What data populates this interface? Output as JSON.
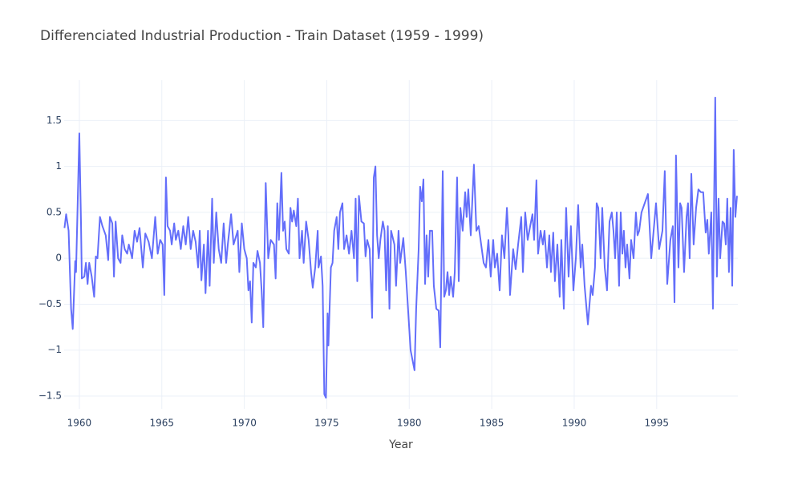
{
  "chart_data": {
    "type": "line",
    "title": "Differenciated Industrial Production - Train Dataset (1959 - 1999)",
    "xlabel": "Year",
    "color": "#636efa",
    "grid": true,
    "xlim": [
      1959.08,
      1999.92
    ],
    "ylim": [
      -1.64,
      1.94
    ],
    "xticks": [
      1960,
      1965,
      1970,
      1975,
      1980,
      1985,
      1990,
      1995
    ],
    "yticks": [
      {
        "value": -1.5,
        "label": "−1.5"
      },
      {
        "value": -1,
        "label": "−1"
      },
      {
        "value": -0.5,
        "label": "−0.5"
      },
      0,
      0.5,
      1,
      1.5
    ],
    "x": [
      1959.1,
      1959.2,
      1959.35,
      1959.5,
      1959.6,
      1959.75,
      1959.8,
      1960.0,
      1960.1,
      1960.15,
      1960.3,
      1960.4,
      1960.5,
      1960.6,
      1960.75,
      1960.9,
      1961.0,
      1961.1,
      1961.25,
      1961.4,
      1961.6,
      1961.75,
      1961.85,
      1962.0,
      1962.1,
      1962.2,
      1962.35,
      1962.5,
      1962.6,
      1962.75,
      1962.9,
      1963.0,
      1963.2,
      1963.35,
      1963.5,
      1963.65,
      1963.85,
      1964.0,
      1964.2,
      1964.4,
      1964.6,
      1964.75,
      1964.9,
      1965.05,
      1965.15,
      1965.25,
      1965.35,
      1965.5,
      1965.6,
      1965.75,
      1965.85,
      1966.0,
      1966.15,
      1966.3,
      1966.45,
      1966.6,
      1966.75,
      1966.9,
      1967.05,
      1967.2,
      1967.3,
      1967.4,
      1967.55,
      1967.65,
      1967.8,
      1967.9,
      1968.05,
      1968.15,
      1968.3,
      1968.45,
      1968.6,
      1968.75,
      1968.9,
      1969.0,
      1969.2,
      1969.35,
      1969.6,
      1969.7,
      1969.85,
      1970.0,
      1970.15,
      1970.25,
      1970.35,
      1970.45,
      1970.55,
      1970.7,
      1970.8,
      1970.95,
      1971.05,
      1971.15,
      1971.3,
      1971.45,
      1971.6,
      1971.8,
      1971.9,
      1972.0,
      1972.1,
      1972.25,
      1972.35,
      1972.45,
      1972.55,
      1972.7,
      1972.8,
      1972.9,
      1973.0,
      1973.15,
      1973.25,
      1973.35,
      1973.5,
      1973.6,
      1973.75,
      1973.9,
      1974.05,
      1974.15,
      1974.3,
      1974.45,
      1974.5,
      1974.65,
      1974.75,
      1974.85,
      1974.95,
      1975.05,
      1975.1,
      1975.25,
      1975.35,
      1975.45,
      1975.6,
      1975.7,
      1975.8,
      1975.95,
      1976.05,
      1976.2,
      1976.35,
      1976.5,
      1976.65,
      1976.75,
      1976.85,
      1976.95,
      1977.1,
      1977.25,
      1977.35,
      1977.45,
      1977.6,
      1977.75,
      1977.85,
      1977.95,
      1978.05,
      1978.15,
      1978.25,
      1978.4,
      1978.5,
      1978.6,
      1978.7,
      1978.8,
      1978.9,
      1979.1,
      1979.2,
      1979.35,
      1979.45,
      1979.64,
      1979.79,
      1980.08,
      1980.32,
      1980.42,
      1980.57,
      1980.66,
      1980.76,
      1980.86,
      1980.96,
      1981.05,
      1981.15,
      1981.25,
      1981.39,
      1981.49,
      1981.64,
      1981.78,
      1981.88,
      1982.03,
      1982.12,
      1982.22,
      1982.32,
      1982.42,
      1982.51,
      1982.66,
      1982.76,
      1982.9,
      1983.0,
      1983.1,
      1983.24,
      1983.39,
      1983.48,
      1983.58,
      1983.73,
      1983.92,
      1984.07,
      1984.21,
      1984.36,
      1984.51,
      1984.65,
      1984.8,
      1984.94,
      1985.09,
      1985.19,
      1985.33,
      1985.48,
      1985.62,
      1985.77,
      1985.92,
      1986.01,
      1986.11,
      1986.3,
      1986.45,
      1986.6,
      1986.79,
      1986.89,
      1987.03,
      1987.18,
      1987.33,
      1987.47,
      1987.57,
      1987.71,
      1987.81,
      1987.96,
      1988.1,
      1988.2,
      1988.35,
      1988.49,
      1988.59,
      1988.73,
      1988.83,
      1988.98,
      1989.12,
      1989.22,
      1989.37,
      1989.51,
      1989.66,
      1989.8,
      1989.95,
      1990.1,
      1990.24,
      1990.39,
      1990.49,
      1990.63,
      1990.83,
      1991.02,
      1991.12,
      1991.26,
      1991.36,
      1991.46,
      1991.6,
      1991.7,
      1991.85,
      1991.99,
      1992.14,
      1992.28,
      1992.38,
      1992.48,
      1992.58,
      1992.72,
      1992.82,
      1992.92,
      1993.01,
      1993.11,
      1993.21,
      1993.35,
      1993.45,
      1993.6,
      1993.74,
      1993.84,
      1993.94,
      1994.08,
      1994.47,
      1994.67,
      1994.96,
      1995.15,
      1995.35,
      1995.49,
      1995.64,
      1995.83,
      1995.98,
      1996.08,
      1996.17,
      1996.32,
      1996.42,
      1996.51,
      1996.66,
      1996.81,
      1996.9,
      1997.0,
      1997.1,
      1997.24,
      1997.39,
      1997.53,
      1997.68,
      1997.82,
      1997.97,
      1998.07,
      1998.16,
      1998.31,
      1998.41,
      1998.55,
      1998.65,
      1998.75,
      1998.85,
      1998.99,
      1999.09,
      1999.19,
      1999.28,
      1999.38,
      1999.48,
      1999.58,
      1999.67,
      1999.77,
      1999.87
    ],
    "values": [
      0.33,
      0.48,
      0.3,
      -0.55,
      -0.77,
      -0.03,
      -0.15,
      1.36,
      0.4,
      -0.22,
      -0.2,
      -0.05,
      -0.28,
      -0.05,
      -0.2,
      -0.42,
      0.02,
      0.0,
      0.45,
      0.35,
      0.25,
      -0.02,
      0.45,
      0.38,
      -0.2,
      0.4,
      0.0,
      -0.05,
      0.25,
      0.1,
      0.05,
      0.15,
      0.0,
      0.3,
      0.18,
      0.33,
      -0.1,
      0.27,
      0.18,
      0.0,
      0.45,
      0.05,
      0.2,
      0.15,
      -0.4,
      0.88,
      0.35,
      0.3,
      0.15,
      0.38,
      0.2,
      0.3,
      0.1,
      0.35,
      0.15,
      0.45,
      0.1,
      0.3,
      0.18,
      -0.1,
      0.3,
      -0.24,
      0.15,
      -0.38,
      0.3,
      -0.3,
      0.65,
      -0.05,
      0.5,
      0.1,
      -0.05,
      0.38,
      -0.05,
      0.15,
      0.48,
      0.15,
      0.3,
      -0.15,
      0.38,
      0.1,
      0.0,
      -0.35,
      -0.25,
      -0.7,
      -0.05,
      -0.1,
      0.08,
      -0.05,
      -0.35,
      -0.75,
      0.82,
      0.0,
      0.2,
      0.15,
      -0.22,
      0.6,
      0.2,
      0.93,
      0.3,
      0.4,
      0.1,
      0.05,
      0.55,
      0.4,
      0.52,
      0.35,
      0.65,
      0.0,
      0.3,
      -0.05,
      0.4,
      0.2,
      -0.15,
      -0.32,
      -0.1,
      0.3,
      -0.1,
      0.02,
      -0.3,
      -1.48,
      -1.52,
      -0.6,
      -0.95,
      -0.1,
      -0.05,
      0.3,
      0.45,
      0.1,
      0.5,
      0.6,
      0.1,
      0.25,
      0.05,
      0.3,
      0.0,
      0.65,
      -0.25,
      0.68,
      0.4,
      0.38,
      0.02,
      0.2,
      0.1,
      -0.65,
      0.88,
      1.0,
      0.25,
      0.0,
      0.2,
      0.4,
      0.3,
      -0.35,
      0.35,
      -0.55,
      0.3,
      0.15,
      -0.3,
      0.3,
      -0.05,
      0.22,
      -0.15,
      -1.0,
      -1.22,
      -0.55,
      0.1,
      0.78,
      0.62,
      0.86,
      -0.28,
      0.25,
      -0.2,
      0.3,
      0.3,
      -0.3,
      -0.55,
      -0.57,
      -0.97,
      0.95,
      -0.42,
      -0.35,
      -0.15,
      -0.4,
      -0.2,
      -0.42,
      -0.15,
      0.88,
      -0.25,
      0.55,
      0.3,
      0.72,
      0.45,
      0.75,
      0.25,
      1.02,
      0.3,
      0.35,
      0.15,
      -0.05,
      -0.1,
      0.2,
      -0.2,
      0.2,
      -0.1,
      0.05,
      -0.35,
      0.25,
      0.0,
      0.55,
      0.25,
      -0.4,
      0.1,
      -0.12,
      0.15,
      0.45,
      -0.15,
      0.5,
      0.2,
      0.35,
      0.48,
      0.2,
      0.85,
      0.05,
      0.3,
      0.15,
      0.3,
      -0.1,
      0.25,
      -0.15,
      0.28,
      -0.25,
      0.15,
      -0.42,
      0.2,
      -0.55,
      0.55,
      -0.2,
      0.35,
      -0.35,
      0.0,
      0.58,
      -0.1,
      0.15,
      -0.3,
      -0.72,
      -0.3,
      -0.4,
      -0.1,
      0.6,
      0.55,
      0.0,
      0.55,
      -0.1,
      -0.35,
      0.4,
      0.5,
      0.3,
      0.0,
      0.5,
      -0.3,
      0.5,
      0.05,
      0.3,
      -0.1,
      0.15,
      -0.22,
      0.2,
      0.0,
      0.5,
      0.25,
      0.3,
      0.5,
      0.7,
      0.0,
      0.6,
      0.1,
      0.3,
      0.95,
      -0.28,
      0.2,
      0.35,
      -0.48,
      1.12,
      -0.1,
      0.6,
      0.55,
      -0.15,
      0.45,
      0.6,
      0.0,
      0.92,
      0.15,
      0.55,
      0.75,
      0.72,
      0.72,
      0.28,
      0.42,
      0.05,
      0.5,
      -0.55,
      1.75,
      -0.2,
      0.65,
      0.0,
      0.4,
      0.38,
      0.15,
      0.65,
      -0.15,
      0.55,
      -0.3,
      1.18,
      0.45,
      0.68
    ]
  }
}
